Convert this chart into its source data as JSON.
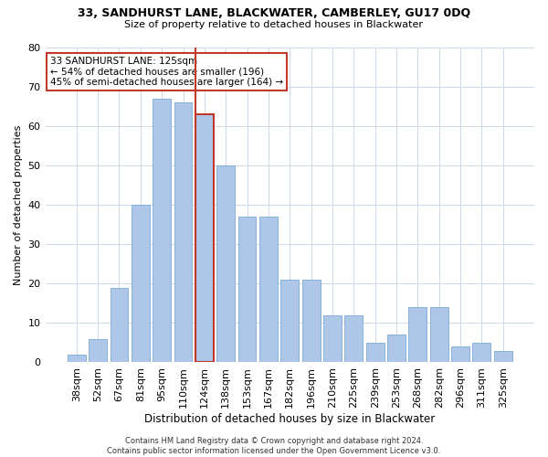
{
  "title": "33, SANDHURST LANE, BLACKWATER, CAMBERLEY, GU17 0DQ",
  "subtitle": "Size of property relative to detached houses in Blackwater",
  "xlabel": "Distribution of detached houses by size in Blackwater",
  "ylabel": "Number of detached properties",
  "categories": [
    "38sqm",
    "52sqm",
    "67sqm",
    "81sqm",
    "95sqm",
    "110sqm",
    "124sqm",
    "138sqm",
    "153sqm",
    "167sqm",
    "182sqm",
    "196sqm",
    "210sqm",
    "225sqm",
    "239sqm",
    "253sqm",
    "268sqm",
    "282sqm",
    "296sqm",
    "311sqm",
    "325sqm"
  ],
  "values": [
    2,
    6,
    19,
    40,
    67,
    66,
    63,
    50,
    37,
    37,
    21,
    21,
    12,
    12,
    5,
    7,
    14,
    14,
    4,
    5,
    3
  ],
  "bar_color": "#aec6e8",
  "bar_edge_color": "#7baad4",
  "highlight_index": 6,
  "highlight_color": "#c0392b",
  "vline_index": 6,
  "annotation_text": "33 SANDHURST LANE: 125sqm\n← 54% of detached houses are smaller (196)\n45% of semi-detached houses are larger (164) →",
  "annotation_box_color": "#ffffff",
  "annotation_box_edge": "#c0392b",
  "ylim": [
    0,
    80
  ],
  "yticks": [
    0,
    10,
    20,
    30,
    40,
    50,
    60,
    70,
    80
  ],
  "footer": "Contains HM Land Registry data © Crown copyright and database right 2024.\nContains public sector information licensed under the Open Government Licence v3.0.",
  "bg_color": "#ffffff",
  "grid_color": "#cdd8ea"
}
